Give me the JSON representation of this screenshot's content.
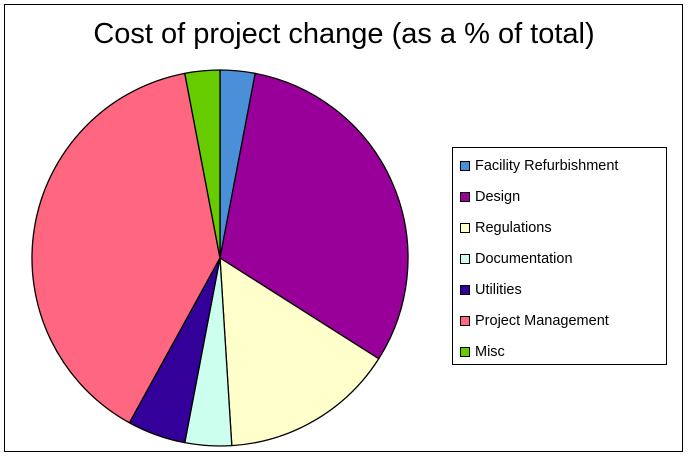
{
  "chart_data": {
    "type": "pie",
    "title": "Cost of project change (as a % of total)",
    "legend_position": "right",
    "slices": [
      {
        "label": "Facility Refurbishment",
        "value": 3,
        "color": "#4a8fd8"
      },
      {
        "label": "Design",
        "value": 31,
        "color": "#990099"
      },
      {
        "label": "Regulations",
        "value": 15,
        "color": "#ffffcc"
      },
      {
        "label": "Documentation",
        "value": 4,
        "color": "#ccffee"
      },
      {
        "label": "Utilities",
        "value": 5,
        "color": "#330099"
      },
      {
        "label": "Project Management",
        "value": 39,
        "color": "#ff6680"
      },
      {
        "label": "Misc",
        "value": 3,
        "color": "#66cc00"
      }
    ]
  }
}
